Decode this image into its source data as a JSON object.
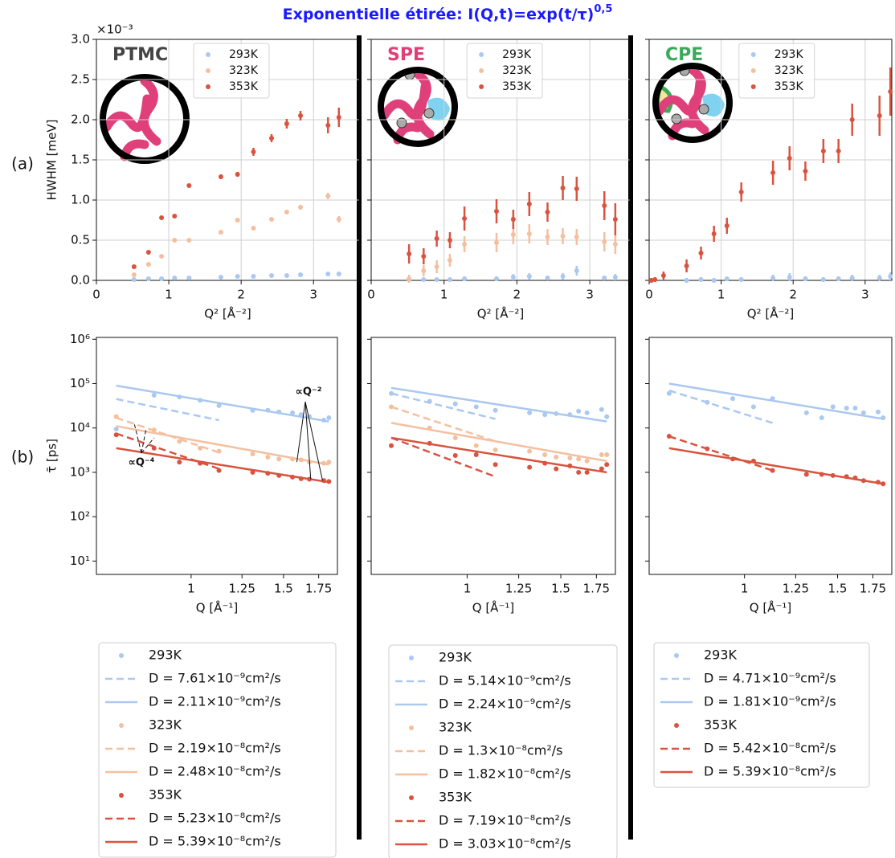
{
  "title": "Exponentielle étirée: I(Q,t)=exp(t/τ)",
  "title_exponent": "0,5",
  "row_labels": [
    "(a)",
    "(b)"
  ],
  "chart_data": [
    {
      "type": "scatter",
      "label": "PTMC",
      "label_color": "#444444",
      "ylabel": "HWHM [meV]",
      "xlabel": "Q² [Å⁻²]",
      "y_offset_label": "×10⁻³",
      "x": [
        0.52,
        0.72,
        0.9,
        1.08,
        1.28,
        1.72,
        1.95,
        2.17,
        2.42,
        2.63,
        2.82,
        3.2,
        3.35
      ],
      "xlim": [
        0,
        3.63
      ],
      "xticks": [
        0,
        1,
        2,
        3
      ],
      "ylim": [
        0,
        3
      ],
      "yticks": [
        {
          "value": 0,
          "label": "0.0"
        },
        0.5,
        {
          "value": 1,
          "label": "1.0"
        },
        1.5,
        {
          "value": 2,
          "label": "2.0"
        },
        2.5,
        {
          "value": 3,
          "label": "3.0"
        }
      ],
      "ytick_labels": true,
      "grid": true,
      "legend": "upper right",
      "series": [
        {
          "name": "293K",
          "color": "#aac8f0",
          "values": [
            0.01,
            0.02,
            0.02,
            0.03,
            0.03,
            0.04,
            0.05,
            0.05,
            0.06,
            0.06,
            0.07,
            0.08,
            0.08
          ],
          "errors": [
            0.01,
            0.01,
            0.01,
            0.01,
            0.01,
            0.01,
            0.01,
            0.01,
            0.01,
            0.01,
            0.01,
            0.02,
            0.02
          ]
        },
        {
          "name": "323K",
          "color": "#f4bf9f",
          "values": [
            0.07,
            0.2,
            0.3,
            0.5,
            0.5,
            0.6,
            0.75,
            0.65,
            0.76,
            0.85,
            0.91,
            1.05,
            0.76
          ],
          "errors": [
            0.01,
            0.02,
            0.02,
            0.02,
            0.02,
            0.02,
            0.02,
            0.02,
            0.02,
            0.02,
            0.03,
            0.04,
            0.04
          ]
        },
        {
          "name": "353K",
          "color": "#d9533f",
          "values": [
            0.17,
            0.35,
            0.78,
            0.8,
            1.18,
            1.29,
            1.32,
            1.6,
            1.77,
            1.95,
            2.05,
            1.93,
            2.03
          ],
          "errors": [
            0.02,
            0.02,
            0.02,
            0.02,
            0.02,
            0.03,
            0.03,
            0.05,
            0.05,
            0.06,
            0.06,
            0.1,
            0.12
          ]
        }
      ]
    },
    {
      "type": "scatter",
      "label": "SPE",
      "label_color": "#e0407a",
      "xlabel": "Q² [Å⁻²]",
      "x": [
        0.52,
        0.72,
        0.9,
        1.08,
        1.28,
        1.72,
        1.95,
        2.17,
        2.42,
        2.63,
        2.82,
        3.2,
        3.35
      ],
      "xlim": [
        0,
        3.55
      ],
      "xticks": [
        0,
        1,
        2,
        3
      ],
      "ylim": [
        0,
        3
      ],
      "yticks": [
        0,
        0.5,
        1,
        1.5,
        2,
        2.5,
        3
      ],
      "ytick_labels": false,
      "grid": true,
      "legend": "upper right",
      "series": [
        {
          "name": "293K",
          "color": "#aac8f0",
          "values": [
            0.01,
            0.01,
            0.01,
            0.01,
            0.02,
            0.02,
            0.04,
            0.05,
            0.03,
            0.05,
            0.12,
            0.03,
            0.04
          ],
          "errors": [
            0.02,
            0.02,
            0.02,
            0.02,
            0.03,
            0.03,
            0.04,
            0.04,
            0.03,
            0.04,
            0.06,
            0.03,
            0.04
          ]
        },
        {
          "name": "323K",
          "color": "#f4bf9f",
          "values": [
            0.02,
            0.12,
            0.17,
            0.25,
            0.45,
            0.47,
            0.57,
            0.58,
            0.54,
            0.55,
            0.54,
            0.48,
            0.45
          ],
          "errors": [
            0.05,
            0.07,
            0.08,
            0.08,
            0.1,
            0.12,
            0.12,
            0.12,
            0.1,
            0.1,
            0.1,
            0.12,
            0.12
          ]
        },
        {
          "name": "353K",
          "color": "#d9533f",
          "values": [
            0.33,
            0.3,
            0.52,
            0.5,
            0.77,
            0.86,
            0.76,
            0.95,
            0.85,
            1.15,
            1.14,
            0.93,
            0.76
          ],
          "errors": [
            0.12,
            0.1,
            0.1,
            0.1,
            0.15,
            0.15,
            0.12,
            0.15,
            0.12,
            0.15,
            0.15,
            0.18,
            0.2
          ]
        }
      ]
    },
    {
      "type": "scatter",
      "label": "CPE",
      "label_color": "#3aaa5a",
      "xlabel": "Q² [Å⁻²]",
      "x": [
        0.03,
        0.08,
        0.2,
        0.52,
        0.72,
        0.9,
        1.08,
        1.28,
        1.72,
        1.95,
        2.17,
        2.42,
        2.63,
        2.82,
        3.2,
        3.35
      ],
      "xlim": [
        0,
        3.37
      ],
      "xticks": [
        0,
        1,
        2,
        3
      ],
      "ylim": [
        0,
        3
      ],
      "yticks": [
        0,
        0.5,
        1,
        1.5,
        2,
        2.5,
        3
      ],
      "ytick_labels": false,
      "grid": true,
      "legend": "upper right",
      "series": [
        {
          "name": "293K",
          "color": "#aac8f0",
          "values": [
            null,
            null,
            null,
            0.0,
            0.01,
            0.0,
            0.02,
            0.01,
            0.03,
            0.04,
            0.02,
            0.01,
            0.02,
            0.03,
            0.03,
            0.05
          ],
          "errors": [
            null,
            null,
            null,
            0.03,
            0.03,
            0.03,
            0.03,
            0.03,
            0.04,
            0.05,
            0.03,
            0.03,
            0.03,
            0.04,
            0.04,
            0.05
          ]
        },
        {
          "name": "323K",
          "color": "#f4bf9f",
          "values": [
            null,
            null,
            null,
            null,
            null,
            null,
            null,
            null,
            null,
            null,
            null,
            null,
            null,
            null,
            null,
            null
          ],
          "errors": [
            null,
            null,
            null,
            null,
            null,
            null,
            null,
            null,
            null,
            null,
            null,
            null,
            null,
            null,
            null,
            null
          ]
        },
        {
          "name": "353K",
          "color": "#d9533f",
          "values": [
            0.0,
            0.01,
            0.06,
            0.18,
            0.34,
            0.58,
            0.68,
            1.1,
            1.34,
            1.52,
            1.36,
            1.61,
            1.61,
            2.0,
            2.05,
            2.35
          ],
          "errors": [
            0.03,
            0.03,
            0.05,
            0.08,
            0.08,
            0.1,
            0.1,
            0.12,
            0.15,
            0.15,
            0.12,
            0.15,
            0.15,
            0.2,
            0.25,
            0.3
          ]
        }
      ]
    },
    {
      "type": "loglog",
      "ylabel": "τ̄ [ps]",
      "xlabel": "Q [Å⁻¹]",
      "x": [
        0.72,
        0.85,
        0.95,
        1.04,
        1.13,
        1.31,
        1.4,
        1.47,
        1.56,
        1.62,
        1.68,
        1.79,
        1.83
      ],
      "xlim": [
        0.66,
        1.9
      ],
      "xticks": [
        1,
        1.25,
        1.5,
        1.75
      ],
      "ylim": [
        5,
        1100000
      ],
      "yticks": [
        {
          "value": 10,
          "label": "10¹"
        },
        {
          "value": 100,
          "label": "10²"
        },
        {
          "value": 1000,
          "label": "10³"
        },
        {
          "value": 10000,
          "label": "10⁴"
        },
        {
          "value": 100000,
          "label": "10⁵"
        },
        {
          "value": 1000000,
          "label": "10⁶"
        }
      ],
      "ytick_labels": true,
      "annotations": [
        "∝Q⁻²",
        "∝Q⁻⁴"
      ],
      "series": [
        {
          "name": "293K",
          "color": "#aac8f0",
          "values": [
            9500,
            55000,
            50000,
            42000,
            32000,
            25000,
            25000,
            23000,
            22000,
            20000,
            18000,
            15000,
            17000
          ]
        },
        {
          "name": "D = 7.61×10⁻⁹cm²/s",
          "color": "#aac8f0",
          "style": "dashed",
          "x": [
            0.72,
            1.13
          ],
          "values": [
            45000,
            15000
          ]
        },
        {
          "name": "D = 2.11×10⁻⁹cm²/s",
          "color": "#aac8f0",
          "style": "solid",
          "x": [
            0.72,
            1.83
          ],
          "values": [
            90000,
            14000
          ]
        },
        {
          "name": "323K",
          "color": "#f4bf9f",
          "values": [
            18000,
            9000,
            5000,
            3500,
            3000,
            2600,
            2200,
            2000,
            2000,
            1900,
            1700,
            1600,
            1700
          ]
        },
        {
          "name": "D = 2.19×10⁻⁸cm²/s",
          "color": "#f4bf9f",
          "style": "dashed",
          "x": [
            0.72,
            1.13
          ],
          "values": [
            17000,
            2800
          ]
        },
        {
          "name": "D = 2.48×10⁻⁸cm²/s",
          "color": "#f4bf9f",
          "style": "solid",
          "x": [
            0.72,
            1.83
          ],
          "values": [
            11000,
            1500
          ]
        },
        {
          "name": "353K",
          "color": "#d9533f",
          "values": [
            7000,
            3500,
            1700,
            1600,
            1100,
            1000,
            950,
            850,
            780,
            720,
            700,
            650,
            620
          ]
        },
        {
          "name": "D = 5.23×10⁻⁸cm²/s",
          "color": "#d9533f",
          "style": "dashed",
          "x": [
            0.72,
            1.13
          ],
          "values": [
            7500,
            1200
          ]
        },
        {
          "name": "D = 5.39×10⁻⁸cm²/s",
          "color": "#d9533f",
          "style": "solid",
          "x": [
            0.72,
            1.83
          ],
          "values": [
            3500,
            600
          ]
        }
      ]
    },
    {
      "type": "loglog",
      "xlabel": "Q [Å⁻¹]",
      "x": [
        0.72,
        0.85,
        0.95,
        1.04,
        1.13,
        1.31,
        1.4,
        1.47,
        1.56,
        1.62,
        1.68,
        1.79,
        1.83
      ],
      "xlim": [
        0.66,
        1.9
      ],
      "xticks": [
        1,
        1.25,
        1.5,
        1.75
      ],
      "ylim": [
        5,
        1100000
      ],
      "yticks": [
        10,
        100,
        1000,
        10000,
        100000,
        1000000
      ],
      "ytick_labels": false,
      "series": [
        {
          "name": "293K",
          "color": "#aac8f0",
          "values": [
            60000,
            40000,
            35000,
            30000,
            25000,
            22000,
            20000,
            21000,
            20000,
            24000,
            22000,
            26000,
            18000
          ]
        },
        {
          "name": "D = 5.14×10⁻⁹cm²/s",
          "color": "#aac8f0",
          "style": "dashed",
          "x": [
            0.72,
            1.13
          ],
          "values": [
            60000,
            16000
          ]
        },
        {
          "name": "D = 2.24×10⁻⁹cm²/s",
          "color": "#aac8f0",
          "style": "solid",
          "x": [
            0.72,
            1.83
          ],
          "values": [
            80000,
            14000
          ]
        },
        {
          "name": "323K",
          "color": "#f4bf9f",
          "values": [
            30000,
            10000,
            6000,
            4000,
            3200,
            3000,
            2500,
            2200,
            2100,
            2000,
            1800,
            2500,
            2500
          ]
        },
        {
          "name": "D = 1.3×10⁻⁸cm²/s",
          "color": "#f4bf9f",
          "style": "dashed",
          "x": [
            0.72,
            1.13
          ],
          "values": [
            30000,
            5000
          ]
        },
        {
          "name": "D = 1.82×10⁻⁸cm²/s",
          "color": "#f4bf9f",
          "style": "solid",
          "x": [
            0.72,
            1.83
          ],
          "values": [
            13000,
            1800
          ]
        },
        {
          "name": "353K",
          "color": "#d9533f",
          "values": [
            4000,
            4500,
            2400,
            2500,
            1500,
            1300,
            1600,
            1200,
            1400,
            1000,
            1000,
            1200,
            1500
          ]
        },
        {
          "name": "D = 7.19×10⁻⁸cm²/s",
          "color": "#d9533f",
          "style": "dashed",
          "x": [
            0.72,
            1.13
          ],
          "values": [
            6000,
            800
          ]
        },
        {
          "name": "D = 3.03×10⁻⁸cm²/s",
          "color": "#d9533f",
          "style": "solid",
          "x": [
            0.72,
            1.83
          ],
          "values": [
            6000,
            1000
          ]
        }
      ]
    },
    {
      "type": "loglog",
      "xlabel": "Q [Å⁻¹]",
      "x": [
        0.72,
        0.85,
        0.95,
        1.04,
        1.13,
        1.31,
        1.4,
        1.47,
        1.56,
        1.62,
        1.68,
        1.79,
        1.83
      ],
      "xlim": [
        0.66,
        1.9
      ],
      "xticks": [
        1,
        1.25,
        1.5,
        1.75
      ],
      "ylim": [
        5,
        1100000
      ],
      "yticks": [
        10,
        100,
        1000,
        10000,
        100000,
        1000000
      ],
      "ytick_labels": false,
      "series": [
        {
          "name": "293K",
          "color": "#aac8f0",
          "values": [
            60000,
            38000,
            46000,
            30000,
            46000,
            22000,
            17000,
            30000,
            28000,
            28000,
            22000,
            23000,
            17000
          ]
        },
        {
          "name": "D = 4.71×10⁻⁹cm²/s",
          "color": "#aac8f0",
          "style": "dashed",
          "x": [
            0.72,
            1.13
          ],
          "values": [
            70000,
            13000
          ]
        },
        {
          "name": "D = 1.81×10⁻⁹cm²/s",
          "color": "#aac8f0",
          "style": "solid",
          "x": [
            0.72,
            1.83
          ],
          "values": [
            100000,
            16000
          ]
        },
        {
          "name": "353K",
          "color": "#d9533f",
          "values": [
            6500,
            3400,
            2000,
            1800,
            1100,
            900,
            900,
            850,
            800,
            750,
            650,
            600,
            550
          ]
        },
        {
          "name": "D = 5.42×10⁻⁸cm²/s",
          "color": "#d9533f",
          "style": "dashed",
          "x": [
            0.72,
            1.13
          ],
          "values": [
            6500,
            1100
          ]
        },
        {
          "name": "D = 5.39×10⁻⁸cm²/s",
          "color": "#d9533f",
          "style": "solid",
          "x": [
            0.72,
            1.83
          ],
          "values": [
            3500,
            550
          ]
        }
      ]
    }
  ]
}
